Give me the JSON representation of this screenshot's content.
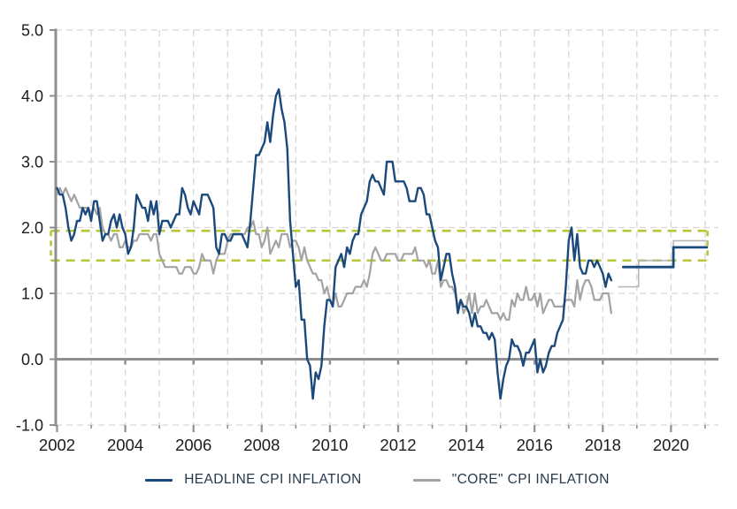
{
  "chart_data": {
    "type": "line",
    "title": "",
    "xlabel": "",
    "ylabel": "",
    "xlim": [
      2002,
      2021.1
    ],
    "ylim": [
      -1.0,
      5.0
    ],
    "grid": true,
    "legend_position": "bottom-center",
    "colors": {
      "headline": "#1b497c",
      "core": "#a3a3a3",
      "core_forecast": "#b7b7b7",
      "target_band": "#b8c53b",
      "gridline": "#d7d7d7",
      "axis": "#8f8f8f",
      "tick_text": "#1c1c1c"
    },
    "y_axis": {
      "tick_labels": [
        "5.0",
        "4.0",
        "3.0",
        "2.0",
        "1.0",
        "0.0",
        "-1.0"
      ],
      "tick_values": [
        5,
        4,
        3,
        2,
        1,
        0,
        -1
      ],
      "gridline_values": [
        5,
        4,
        3,
        2,
        1,
        -1
      ],
      "zero_line_value": 0
    },
    "x_axis": {
      "tick_labels": [
        "2002",
        "2004",
        "2006",
        "2008",
        "2010",
        "2012",
        "2014",
        "2016",
        "2018",
        "2020"
      ],
      "tick_values": [
        2002,
        2004,
        2006,
        2008,
        2010,
        2012,
        2014,
        2016,
        2018,
        2020
      ],
      "gridline_years": [
        2003,
        2004,
        2005,
        2006,
        2007,
        2008,
        2009,
        2010,
        2011,
        2012,
        2013,
        2014,
        2015,
        2016,
        2017,
        2018,
        2019,
        2020,
        2021
      ],
      "minor_tick_years": [
        2002,
        2003,
        2004,
        2005,
        2006,
        2007,
        2008,
        2009,
        2010,
        2011,
        2012,
        2013,
        2014,
        2015,
        2016,
        2017,
        2018,
        2019,
        2020,
        2021
      ],
      "zero_line_tick_years": [
        2004,
        2006,
        2008,
        2010,
        2012,
        2014,
        2016,
        2018
      ]
    },
    "target_band": {
      "top": 1.95,
      "bottom": 1.5,
      "x_start": 2001.82,
      "x_end": 2021.07
    },
    "series": [
      {
        "name": "HEADLINE CPI INFLATION",
        "color": "#1b497c",
        "start_year": 2002,
        "points_per_year": 12,
        "values": [
          2.6,
          2.5,
          2.5,
          2.3,
          2.0,
          1.8,
          1.9,
          2.1,
          2.1,
          2.3,
          2.2,
          2.3,
          2.1,
          2.4,
          2.4,
          2.1,
          1.8,
          1.9,
          1.9,
          2.1,
          2.2,
          2.0,
          2.2,
          2.0,
          1.9,
          1.6,
          1.7,
          2.0,
          2.5,
          2.4,
          2.3,
          2.3,
          2.1,
          2.4,
          2.2,
          2.4,
          1.9,
          2.1,
          2.1,
          2.1,
          2.0,
          2.1,
          2.2,
          2.2,
          2.6,
          2.5,
          2.3,
          2.2,
          2.4,
          2.3,
          2.2,
          2.5,
          2.5,
          2.5,
          2.4,
          2.3,
          1.7,
          1.6,
          1.9,
          1.9,
          1.8,
          1.8,
          1.9,
          1.9,
          1.9,
          1.9,
          1.8,
          1.7,
          2.1,
          2.6,
          3.1,
          3.1,
          3.2,
          3.3,
          3.6,
          3.3,
          3.7,
          4.0,
          4.1,
          3.8,
          3.6,
          3.2,
          2.1,
          1.6,
          1.1,
          1.2,
          0.6,
          0.6,
          0.0,
          -0.1,
          -0.6,
          -0.2,
          -0.3,
          -0.1,
          0.5,
          0.9,
          0.9,
          0.8,
          1.4,
          1.5,
          1.6,
          1.4,
          1.7,
          1.6,
          1.8,
          1.9,
          1.9,
          2.2,
          2.3,
          2.4,
          2.7,
          2.8,
          2.7,
          2.7,
          2.6,
          2.5,
          3.0,
          3.0,
          3.0,
          2.7,
          2.7,
          2.7,
          2.7,
          2.6,
          2.4,
          2.4,
          2.4,
          2.6,
          2.6,
          2.5,
          2.2,
          2.2,
          2.0,
          1.8,
          1.7,
          1.2,
          1.4,
          1.6,
          1.6,
          1.3,
          1.1,
          0.7,
          0.9,
          0.8,
          0.8,
          0.7,
          0.5,
          0.7,
          0.5,
          0.5,
          0.4,
          0.4,
          0.3,
          0.4,
          0.3,
          -0.2,
          -0.6,
          -0.3,
          -0.1,
          0.0,
          0.3,
          0.2,
          0.2,
          0.1,
          -0.1,
          0.1,
          0.1,
          0.2,
          0.3,
          -0.2,
          0.0,
          -0.2,
          -0.1,
          0.1,
          0.2,
          0.2,
          0.4,
          0.5,
          0.6,
          1.1,
          1.8,
          2.0,
          1.5,
          1.9,
          1.4,
          1.3,
          1.3,
          1.5,
          1.5,
          1.4,
          1.5,
          1.4,
          1.3,
          1.1,
          1.3,
          1.2
        ],
        "forecast_points": [
          [
            2018.6,
            1.4
          ],
          [
            2020.07,
            1.4
          ],
          [
            2020.07,
            1.7
          ],
          [
            2021.05,
            1.7
          ]
        ]
      },
      {
        "name": "\"CORE\" CPI INFLATION",
        "color": "#a3a3a3",
        "start_year": 2002,
        "points_per_year": 12,
        "values": [
          2.5,
          2.6,
          2.5,
          2.6,
          2.5,
          2.4,
          2.5,
          2.4,
          2.3,
          2.3,
          2.3,
          2.3,
          2.2,
          2.3,
          2.2,
          2.3,
          2.0,
          1.9,
          1.9,
          1.8,
          1.9,
          1.9,
          1.7,
          1.7,
          1.8,
          1.7,
          1.7,
          1.8,
          1.8,
          1.9,
          1.9,
          1.9,
          1.9,
          1.8,
          1.9,
          1.9,
          1.6,
          1.5,
          1.4,
          1.4,
          1.4,
          1.4,
          1.4,
          1.3,
          1.3,
          1.4,
          1.4,
          1.4,
          1.3,
          1.3,
          1.4,
          1.6,
          1.5,
          1.5,
          1.5,
          1.3,
          1.5,
          1.6,
          1.6,
          1.6,
          1.8,
          1.9,
          1.9,
          1.9,
          1.9,
          1.9,
          1.9,
          2.0,
          2.0,
          2.1,
          1.9,
          1.9,
          1.7,
          1.8,
          2.0,
          1.6,
          1.7,
          1.8,
          1.7,
          1.9,
          1.9,
          1.9,
          1.7,
          1.8,
          1.8,
          1.7,
          1.5,
          1.7,
          1.5,
          1.4,
          1.3,
          1.3,
          1.2,
          1.2,
          1.0,
          1.1,
          0.9,
          0.8,
          1.0,
          0.8,
          0.8,
          0.9,
          1.0,
          1.0,
          1.0,
          1.1,
          1.1,
          1.1,
          1.2,
          1.1,
          1.3,
          1.6,
          1.7,
          1.6,
          1.5,
          1.5,
          1.6,
          1.6,
          1.6,
          1.6,
          1.5,
          1.5,
          1.6,
          1.6,
          1.6,
          1.6,
          1.7,
          1.5,
          1.5,
          1.5,
          1.4,
          1.5,
          1.3,
          1.3,
          1.5,
          1.1,
          1.2,
          1.2,
          1.1,
          1.1,
          1.0,
          0.8,
          0.9,
          0.7,
          0.8,
          1.0,
          0.7,
          1.0,
          0.7,
          0.8,
          0.8,
          0.9,
          0.8,
          0.7,
          0.7,
          0.7,
          0.6,
          0.7,
          0.6,
          0.6,
          0.9,
          0.8,
          1.0,
          0.9,
          0.9,
          1.1,
          0.9,
          0.9,
          1.0,
          0.8,
          1.0,
          0.7,
          0.8,
          0.9,
          0.9,
          0.8,
          0.8,
          0.8,
          0.8,
          0.9,
          0.9,
          0.9,
          0.8,
          1.2,
          0.9,
          1.1,
          1.2,
          1.2,
          1.1,
          0.9,
          0.9,
          0.9,
          1.0,
          1.0,
          1.0,
          0.7
        ],
        "forecast_points": [
          [
            2018.47,
            1.1
          ],
          [
            2019.05,
            1.1
          ],
          [
            2019.05,
            1.5
          ],
          [
            2020.07,
            1.5
          ],
          [
            2020.07,
            1.8
          ],
          [
            2021.05,
            1.8
          ]
        ]
      }
    ]
  },
  "legend": {
    "headline_label": "HEADLINE CPI INFLATION",
    "core_label": "\"CORE\" CPI INFLATION"
  }
}
